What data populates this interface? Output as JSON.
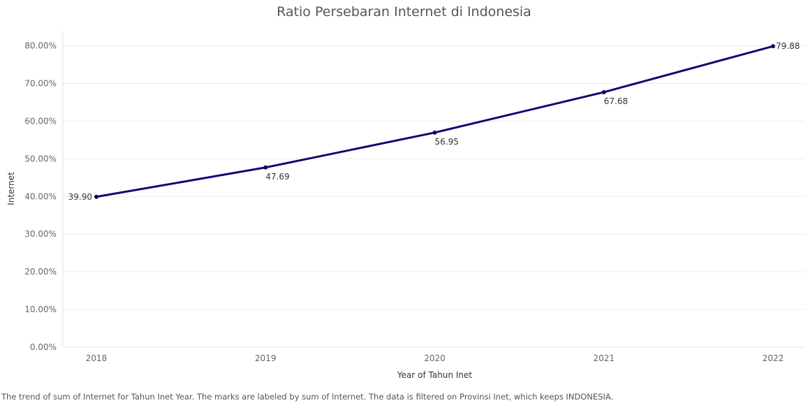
{
  "chart_data": {
    "type": "line",
    "title": "Ratio Persebaran Internet di Indonesia",
    "xlabel": "Year of Tahun Inet",
    "ylabel": "Internet",
    "x": [
      "2018",
      "2019",
      "2020",
      "2021",
      "2022"
    ],
    "series": [
      {
        "values": [
          39.9,
          47.69,
          56.95,
          67.68,
          79.88
        ],
        "labels": [
          "39.90",
          "47.69",
          "56.95",
          "67.68",
          "79.88"
        ],
        "color": "#0d0a73"
      }
    ],
    "y_ticks": [
      "0.00%",
      "10.00%",
      "20.00%",
      "30.00%",
      "40.00%",
      "50.00%",
      "60.00%",
      "70.00%",
      "80.00%"
    ],
    "ylim": [
      0,
      80
    ],
    "grid": true,
    "legend": "none"
  },
  "caption": "The trend of sum of Internet for Tahun Inet Year.  The marks are labeled by sum of Internet. The data is filtered on Provinsi Inet, which keeps INDONESIA."
}
